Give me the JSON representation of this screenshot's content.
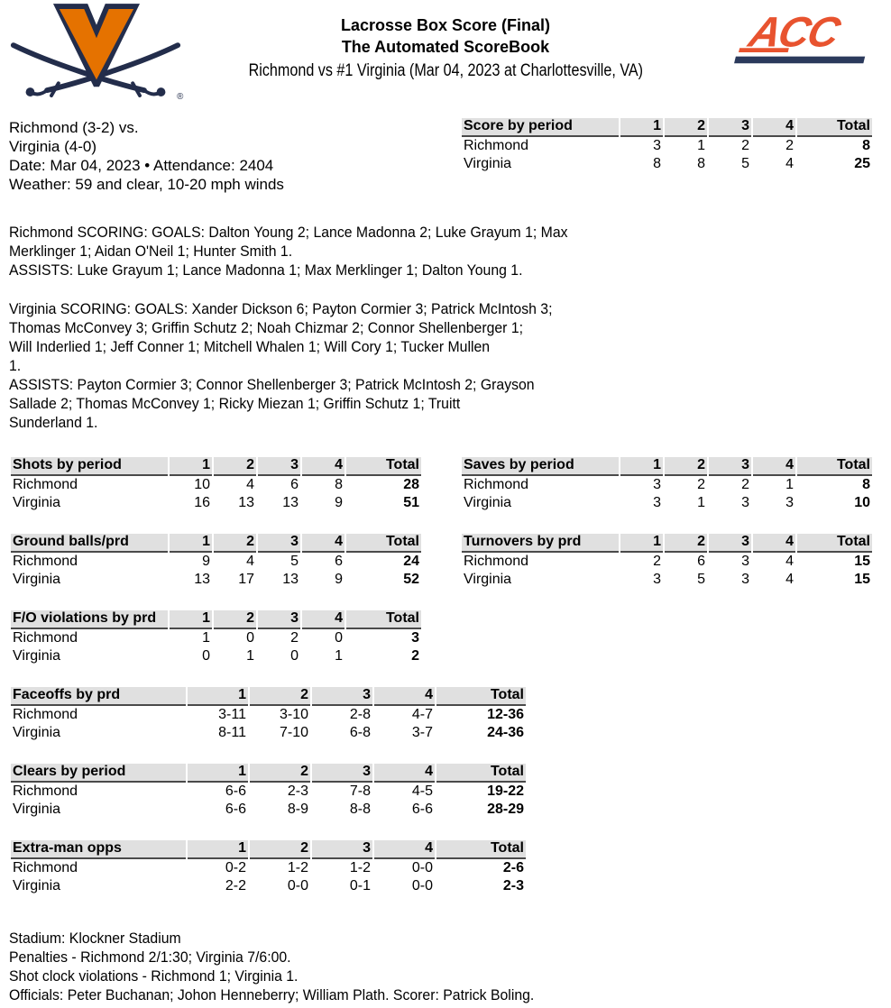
{
  "header": {
    "title_line1": "Lacrosse Box Score (Final)",
    "title_line2": "The Automated ScoreBook",
    "subtitle": "Richmond vs #1 Virginia (Mar 04, 2023 at Charlottesville, VA)",
    "left_logo": "virginia-cavaliers",
    "right_logo": "acc-conference",
    "acc_registered_mark": "®"
  },
  "game_info": {
    "lines": [
      "Richmond (3-2) vs.",
      "Virginia (4-0)",
      "Date: Mar 04, 2023 • Attendance: 2404",
      "Weather: 59 and clear, 10-20 mph winds"
    ]
  },
  "scoring_summary": {
    "richmond_lines": [
      "Richmond SCORING: GOALS: Dalton Young 2; Lance Madonna 2; Luke Grayum 1; Max",
      "Merklinger 1; Aidan O'Neil 1; Hunter Smith 1.",
      "ASSISTS: Luke Grayum 1; Lance Madonna 1; Max Merklinger 1; Dalton Young 1."
    ],
    "virginia_lines": [
      "Virginia SCORING: GOALS: Xander Dickson 6; Payton Cormier 3; Patrick McIntosh 3;",
      "Thomas McConvey 3; Griffin Schutz 2; Noah Chizmar 2; Connor Shellenberger 1;",
      "Will Inderlied 1; Jeff Conner 1; Mitchell Whalen 1; Will Cory 1; Tucker Mullen",
      "1.",
      "ASSISTS: Payton Cormier 3; Connor Shellenberger 3; Patrick McIntosh 2; Grayson",
      "Sallade 2; Thomas McConvey 1; Ricky Miezan 1; Griffin Schutz 1; Truitt",
      "Sunderland 1."
    ]
  },
  "stat_tables": {
    "score_by_period": {
      "title": "Score by period",
      "columns": [
        "1",
        "2",
        "3",
        "4",
        "Total"
      ],
      "rows": [
        [
          "Richmond",
          "3",
          "1",
          "2",
          "2",
          "8"
        ],
        [
          "Virginia",
          "8",
          "8",
          "5",
          "4",
          "25"
        ]
      ]
    },
    "shots_by_period": {
      "title": "Shots by period",
      "columns": [
        "1",
        "2",
        "3",
        "4",
        "Total"
      ],
      "rows": [
        [
          "Richmond",
          "10",
          "4",
          "6",
          "8",
          "28"
        ],
        [
          "Virginia",
          "16",
          "13",
          "13",
          "9",
          "51"
        ]
      ]
    },
    "saves_by_period": {
      "title": "Saves by period",
      "columns": [
        "1",
        "2",
        "3",
        "4",
        "Total"
      ],
      "rows": [
        [
          "Richmond",
          "3",
          "2",
          "2",
          "1",
          "8"
        ],
        [
          "Virginia",
          "3",
          "1",
          "3",
          "3",
          "10"
        ]
      ]
    },
    "ground_balls_by_period": {
      "title": "Ground balls/prd",
      "columns": [
        "1",
        "2",
        "3",
        "4",
        "Total"
      ],
      "rows": [
        [
          "Richmond",
          "9",
          "4",
          "5",
          "6",
          "24"
        ],
        [
          "Virginia",
          "13",
          "17",
          "13",
          "9",
          "52"
        ]
      ]
    },
    "turnovers_by_period": {
      "title": "Turnovers by prd",
      "columns": [
        "1",
        "2",
        "3",
        "4",
        "Total"
      ],
      "rows": [
        [
          "Richmond",
          "2",
          "6",
          "3",
          "4",
          "15"
        ],
        [
          "Virginia",
          "3",
          "5",
          "3",
          "4",
          "15"
        ]
      ]
    },
    "fo_violations_by_period": {
      "title": "F/O violations by prd",
      "columns": [
        "1",
        "2",
        "3",
        "4",
        "Total"
      ],
      "rows": [
        [
          "Richmond",
          "1",
          "0",
          "2",
          "0",
          "3"
        ],
        [
          "Virginia",
          "0",
          "1",
          "0",
          "1",
          "2"
        ]
      ]
    },
    "faceoffs_by_period": {
      "title": "Faceoffs by prd",
      "columns": [
        "1",
        "2",
        "3",
        "4",
        "Total"
      ],
      "rows": [
        [
          "Richmond",
          "3-11",
          "3-10",
          "2-8",
          "4-7",
          "12-36"
        ],
        [
          "Virginia",
          "8-11",
          "7-10",
          "6-8",
          "3-7",
          "24-36"
        ]
      ]
    },
    "clears_by_period": {
      "title": "Clears by period",
      "columns": [
        "1",
        "2",
        "3",
        "4",
        "Total"
      ],
      "rows": [
        [
          "Richmond",
          "6-6",
          "2-3",
          "7-8",
          "4-5",
          "19-22"
        ],
        [
          "Virginia",
          "6-6",
          "8-9",
          "8-8",
          "6-6",
          "28-29"
        ]
      ]
    },
    "extra_man_opps": {
      "title": "Extra-man opps",
      "columns": [
        "1",
        "2",
        "3",
        "4",
        "Total"
      ],
      "rows": [
        [
          "Richmond",
          "0-2",
          "1-2",
          "1-2",
          "0-0",
          "2-6"
        ],
        [
          "Virginia",
          "2-2",
          "0-0",
          "0-1",
          "0-0",
          "2-3"
        ]
      ]
    }
  },
  "footer": {
    "lines": [
      "Stadium: Klockner Stadium",
      "Penalties - Richmond 2/1:30; Virginia 7/6:00.",
      "Shot clock violations - Richmond 1; Virginia 1.",
      "Officials: Peter Buchanan; Johon Henneberry; William Plath. Scorer: Patrick Boling."
    ]
  },
  "colors": {
    "uva_orange": "#E57200",
    "uva_navy": "#232D4B",
    "acc_orange": "#E8532F",
    "acc_navy": "#2B3A5C",
    "table_header_bg": "#E0E0E0",
    "table_header_rule": "#4A4A4A"
  }
}
